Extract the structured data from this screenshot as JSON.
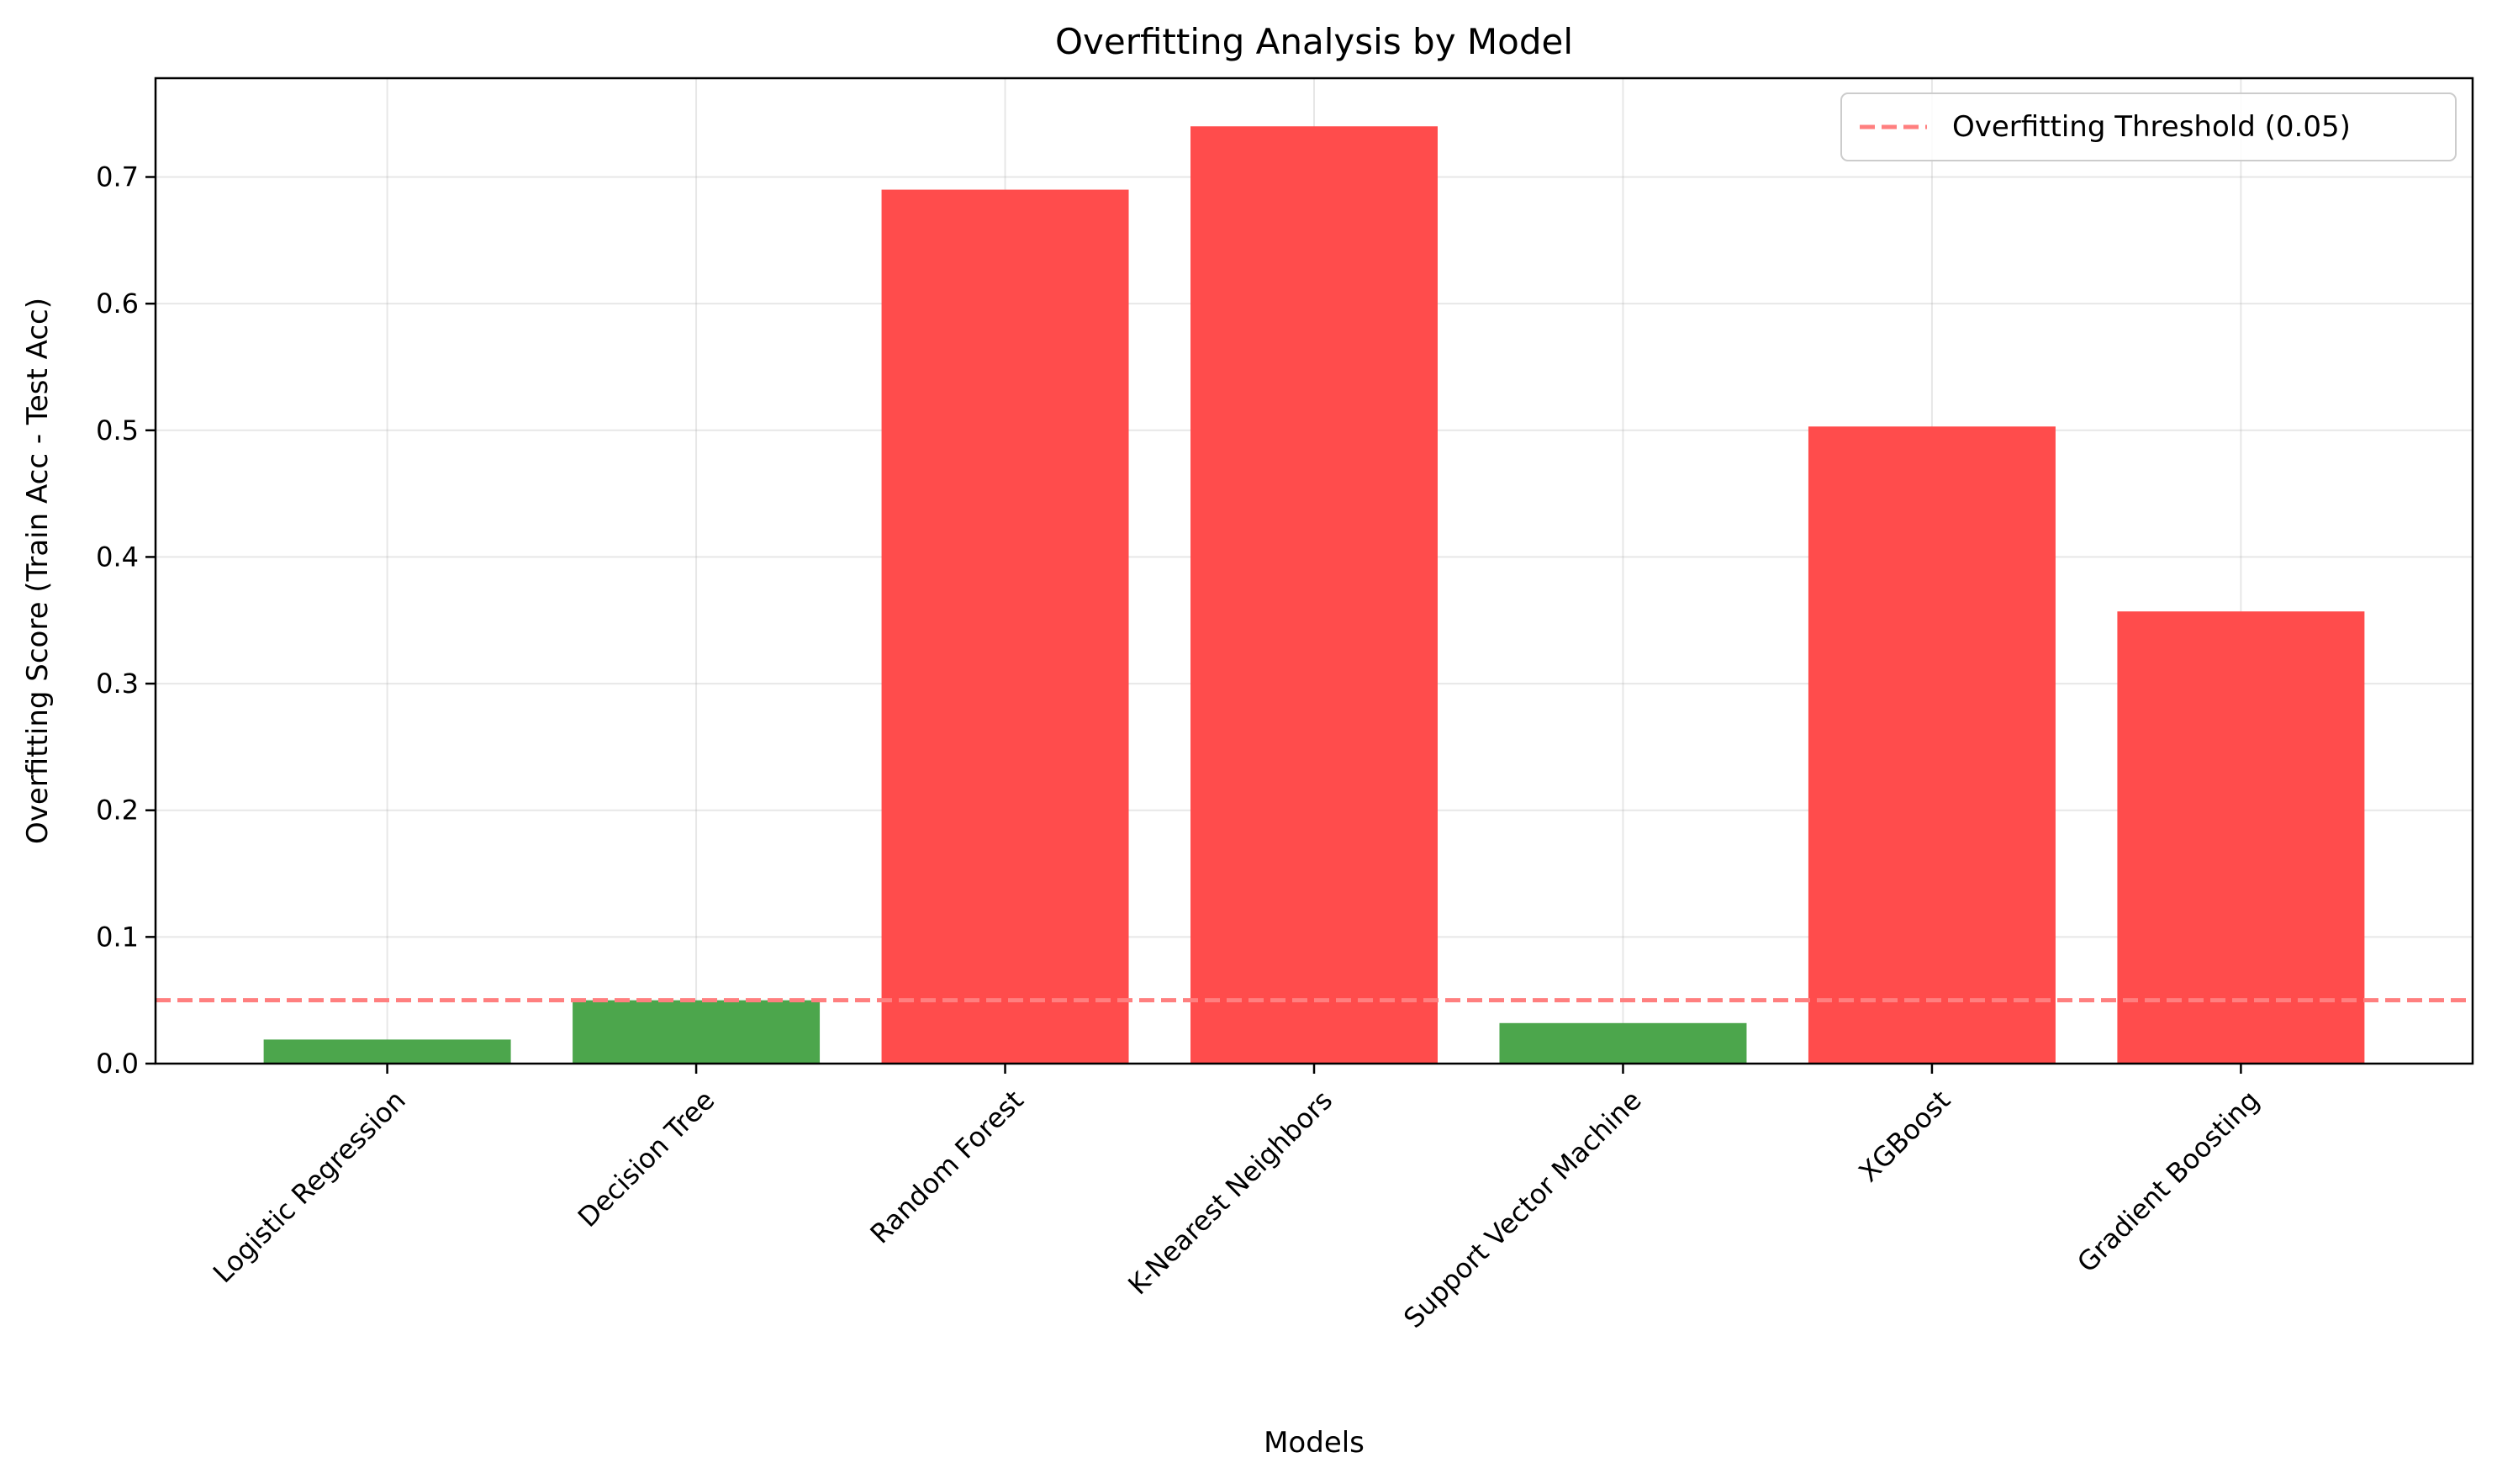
{
  "chart_data": {
    "type": "bar",
    "title": "Overfitting Analysis by Model",
    "xlabel": "Models",
    "ylabel": "Overfitting Score (Train Acc - Test Acc)",
    "categories": [
      "Logistic Regression",
      "Decision Tree",
      "Random Forest",
      "K-Nearest Neighbors",
      "Support Vector Machine",
      "XGBoost",
      "Gradient Boosting"
    ],
    "values": [
      0.019,
      0.05,
      0.69,
      0.74,
      0.032,
      0.503,
      0.357
    ],
    "bar_colors": [
      "#4ca64c",
      "#4ca64c",
      "#ff4c4c",
      "#ff4c4c",
      "#4ca64c",
      "#ff4c4c",
      "#ff4c4c"
    ],
    "ylim": [
      0,
      0.778
    ],
    "yticks": [
      0.0,
      0.1,
      0.2,
      0.3,
      0.4,
      0.5,
      0.6,
      0.7
    ],
    "threshold": {
      "value": 0.05,
      "label": "Overfitting Threshold (0.05)",
      "color": "#ff7f7f",
      "style": "dashed"
    },
    "grid": true,
    "legend_position": "top-right"
  }
}
